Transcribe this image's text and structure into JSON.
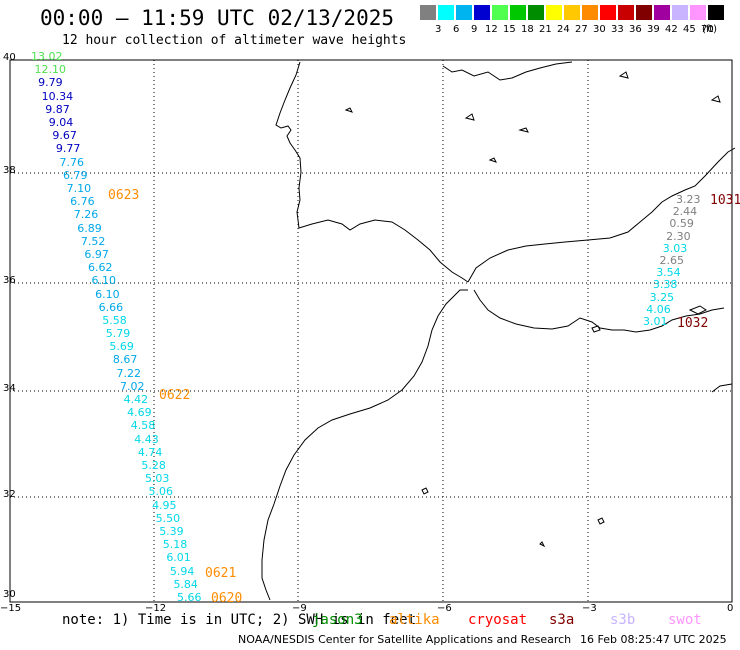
{
  "title": "00:00 – 11:59 UTC 02/13/2025",
  "subtitle": "12 hour collection of altimeter wave heights",
  "legend": {
    "unit_label": "(ft)",
    "bins": [
      {
        "label": "3",
        "color": "#808080"
      },
      {
        "label": "6",
        "color": "#00ffff"
      },
      {
        "label": "9",
        "color": "#00b4f0"
      },
      {
        "label": "12",
        "color": "#0000d0"
      },
      {
        "label": "15",
        "color": "#50ff50"
      },
      {
        "label": "18",
        "color": "#00c800"
      },
      {
        "label": "21",
        "color": "#008c00"
      },
      {
        "label": "24",
        "color": "#ffff00"
      },
      {
        "label": "27",
        "color": "#ffc800"
      },
      {
        "label": "30",
        "color": "#ff8c00"
      },
      {
        "label": "33",
        "color": "#ff0000"
      },
      {
        "label": "36",
        "color": "#c80000"
      },
      {
        "label": "39",
        "color": "#800000"
      },
      {
        "label": "42",
        "color": "#a000a0"
      },
      {
        "label": "45",
        "color": "#c8b4ff"
      },
      {
        "label": "70",
        "color": "#ff96ff"
      },
      {
        "label": "",
        "color": "#000000"
      }
    ]
  },
  "axes": {
    "lat_labels": [
      "40",
      "38",
      "36",
      "34",
      "32",
      "30"
    ],
    "lon_labels": [
      "−15",
      "−12",
      "−9",
      "−6",
      "−3",
      "0"
    ]
  },
  "track_west": [
    {
      "v": "13.02",
      "c": "#50e050"
    },
    {
      "v": "12.10",
      "c": "#50e050"
    },
    {
      "v": "9.79",
      "c": "#0000c0"
    },
    {
      "v": "10.34",
      "c": "#0000c0"
    },
    {
      "v": "9.87",
      "c": "#0000c0"
    },
    {
      "v": "9.04",
      "c": "#0000c0"
    },
    {
      "v": "9.67",
      "c": "#0000c0"
    },
    {
      "v": "9.77",
      "c": "#0000c0"
    },
    {
      "v": "7.76",
      "c": "#00a8e8"
    },
    {
      "v": "6.79",
      "c": "#00a8e8"
    },
    {
      "v": "7.10",
      "c": "#00a8e8"
    },
    {
      "v": "6.76",
      "c": "#00a8e8"
    },
    {
      "v": "7.26",
      "c": "#00a8e8"
    },
    {
      "v": "6.89",
      "c": "#00a8e8"
    },
    {
      "v": "7.52",
      "c": "#00a8e8"
    },
    {
      "v": "6.97",
      "c": "#00a8e8"
    },
    {
      "v": "6.62",
      "c": "#00a8e8"
    },
    {
      "v": "6.10",
      "c": "#00a8e8"
    },
    {
      "v": "6.10",
      "c": "#00a8e8"
    },
    {
      "v": "6.66",
      "c": "#00a8e8"
    },
    {
      "v": "5.58",
      "c": "#00d8e8"
    },
    {
      "v": "5.79",
      "c": "#00d8e8"
    },
    {
      "v": "5.69",
      "c": "#00d8e8"
    },
    {
      "v": "8.67",
      "c": "#00a8e8"
    },
    {
      "v": "7.22",
      "c": "#00a8e8"
    },
    {
      "v": "7.02",
      "c": "#00a8e8"
    },
    {
      "v": "4.42",
      "c": "#00d8e8"
    },
    {
      "v": "4.69",
      "c": "#00d8e8"
    },
    {
      "v": "4.58",
      "c": "#00d8e8"
    },
    {
      "v": "4.43",
      "c": "#00d8e8"
    },
    {
      "v": "4.74",
      "c": "#00d8e8"
    },
    {
      "v": "5.28",
      "c": "#00d8e8"
    },
    {
      "v": "5.03",
      "c": "#00d8e8"
    },
    {
      "v": "5.06",
      "c": "#00d8e8"
    },
    {
      "v": "4.95",
      "c": "#00d8e8"
    },
    {
      "v": "5.50",
      "c": "#00d8e8"
    },
    {
      "v": "5.39",
      "c": "#00d8e8"
    },
    {
      "v": "5.18",
      "c": "#00d8e8"
    },
    {
      "v": "6.01",
      "c": "#00d8e8"
    },
    {
      "v": "5.94",
      "c": "#00d8e8"
    },
    {
      "v": "5.84",
      "c": "#00d8e8"
    },
    {
      "v": "5.66",
      "c": "#00d8e8"
    }
  ],
  "track_east": [
    {
      "v": "3.23",
      "c": "#808080"
    },
    {
      "v": "2.44",
      "c": "#808080"
    },
    {
      "v": "0.59",
      "c": "#808080"
    },
    {
      "v": "2.30",
      "c": "#808080"
    },
    {
      "v": "3.03",
      "c": "#00d8e8"
    },
    {
      "v": "2.65",
      "c": "#808080"
    },
    {
      "v": "3.54",
      "c": "#00d8e8"
    },
    {
      "v": "3.38",
      "c": "#00d8e8"
    },
    {
      "v": "3.25",
      "c": "#00d8e8"
    },
    {
      "v": "4.06",
      "c": "#00d8e8"
    },
    {
      "v": "3.01",
      "c": "#00d8e8"
    }
  ],
  "pass_labels": [
    {
      "text": "0623",
      "color": "#ff8c00"
    },
    {
      "text": "0622",
      "color": "#ff8c00"
    },
    {
      "text": "0621",
      "color": "#ff8c00"
    },
    {
      "text": "0620",
      "color": "#ff8c00"
    },
    {
      "text": "1031",
      "color": "#800000"
    },
    {
      "text": "1032",
      "color": "#800000"
    }
  ],
  "footer": {
    "note": "note: 1) Time is in UTC; 2) SWH is in feet",
    "satellites": [
      {
        "name": "jason3",
        "color": "#008c00"
      },
      {
        "name": "altika",
        "color": "#ff8c00"
      },
      {
        "name": "cryosat",
        "color": "#ff0000"
      },
      {
        "name": "s3a",
        "color": "#800000"
      },
      {
        "name": "s3b",
        "color": "#c8b4ff"
      },
      {
        "name": "swot",
        "color": "#ff96ff"
      }
    ],
    "credit": "NOAA/NESDIS Center for Satellite Applications and Research",
    "timestamp": "16 Feb 08:25:47 UTC 2025"
  }
}
